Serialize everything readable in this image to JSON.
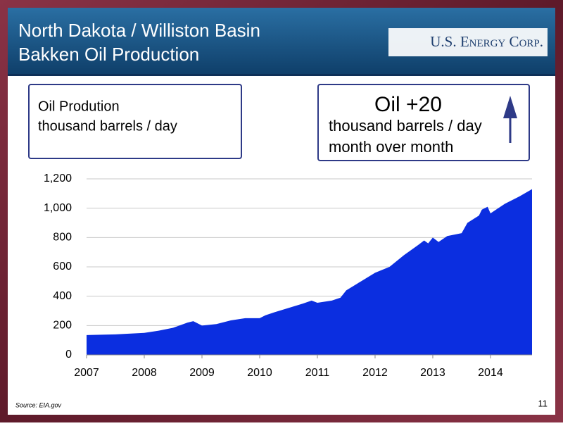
{
  "header": {
    "title_lines": [
      "North Dakota / Williston Basin",
      "Bakken Oil Production"
    ],
    "logo": "U.S. Energy Corp."
  },
  "info_boxes": [
    {
      "lines": [
        "Oil Prodution",
        "thousand barrels / day"
      ]
    },
    {
      "headline": "Oil +20",
      "lines": [
        "thousand barrels / day",
        "month over month"
      ]
    }
  ],
  "footer": {
    "source": "Source: EIA.gov",
    "page_number": 11
  },
  "chart_data": {
    "type": "area",
    "color": "#0b2ee0",
    "grid": true,
    "x": [
      2007,
      2007.5,
      2008,
      2008.25,
      2008.5,
      2008.75,
      2008.85,
      2009,
      2009.25,
      2009.5,
      2009.75,
      2010,
      2010.1,
      2010.25,
      2010.5,
      2010.75,
      2010.9,
      2011,
      2011.25,
      2011.4,
      2011.5,
      2011.75,
      2012,
      2012.25,
      2012.5,
      2012.75,
      2012.85,
      2012.92,
      2013,
      2013.1,
      2013.25,
      2013.5,
      2013.6,
      2013.8,
      2013.85,
      2013.95,
      2014,
      2014.25,
      2014.5,
      2014.72
    ],
    "values": [
      135,
      140,
      150,
      165,
      185,
      220,
      230,
      200,
      210,
      235,
      250,
      250,
      270,
      290,
      320,
      350,
      370,
      355,
      370,
      390,
      440,
      500,
      560,
      600,
      680,
      750,
      780,
      760,
      800,
      770,
      810,
      830,
      900,
      950,
      990,
      1010,
      965,
      1030,
      1080,
      1130
    ],
    "xlim": [
      2007,
      2014.72
    ],
    "xticks": [
      2007,
      2008,
      2009,
      2010,
      2011,
      2012,
      2013,
      2014
    ],
    "ylim": [
      0,
      1200
    ],
    "yticks": [
      0,
      200,
      400,
      600,
      800,
      {
        "value": 1000,
        "label": "1,000"
      },
      {
        "value": 1200,
        "label": "1,200"
      }
    ]
  }
}
